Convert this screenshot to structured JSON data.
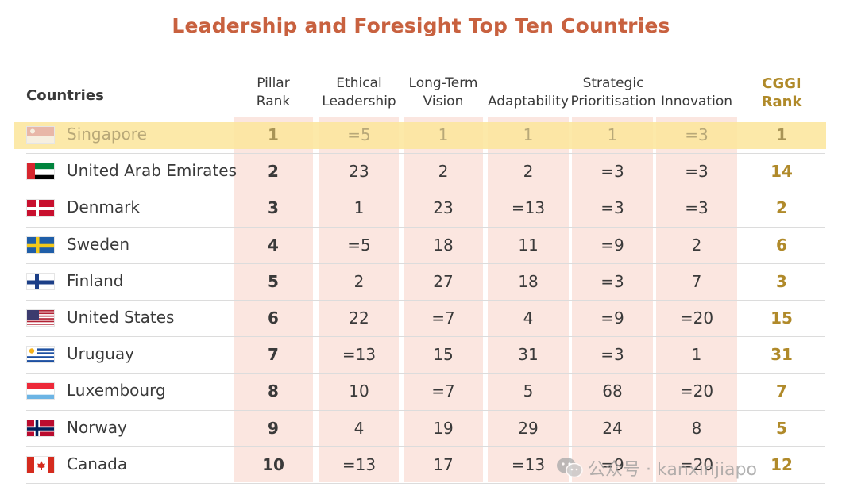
{
  "title": "Leadership and Foresight Top Ten Countries",
  "columns": {
    "countries": "Countries",
    "pillar": "Pillar\nRank",
    "ethical": "Ethical\nLeadership",
    "longterm": "Long-Term\nVision",
    "adaptability": "Adaptability",
    "strategic": "Strategic\nPrioritisation",
    "innovation": "Innovation",
    "cggi": "CGGI\nRank"
  },
  "rows": [
    {
      "country": "Singapore",
      "pillar": "1",
      "ethical": "=5",
      "longterm": "1",
      "adaptability": "1",
      "strategic": "1",
      "innovation": "=3",
      "cggi": "1"
    },
    {
      "country": "United Arab Emirates",
      "pillar": "2",
      "ethical": "23",
      "longterm": "2",
      "adaptability": "2",
      "strategic": "=3",
      "innovation": "=3",
      "cggi": "14"
    },
    {
      "country": "Denmark",
      "pillar": "3",
      "ethical": "1",
      "longterm": "23",
      "adaptability": "=13",
      "strategic": "=3",
      "innovation": "=3",
      "cggi": "2"
    },
    {
      "country": "Sweden",
      "pillar": "4",
      "ethical": "=5",
      "longterm": "18",
      "adaptability": "11",
      "strategic": "=9",
      "innovation": "2",
      "cggi": "6"
    },
    {
      "country": "Finland",
      "pillar": "5",
      "ethical": "2",
      "longterm": "27",
      "adaptability": "18",
      "strategic": "=3",
      "innovation": "7",
      "cggi": "3"
    },
    {
      "country": "United States",
      "pillar": "6",
      "ethical": "22",
      "longterm": "=7",
      "adaptability": "4",
      "strategic": "=9",
      "innovation": "=20",
      "cggi": "15"
    },
    {
      "country": "Uruguay",
      "pillar": "7",
      "ethical": "=13",
      "longterm": "15",
      "adaptability": "31",
      "strategic": "=3",
      "innovation": "1",
      "cggi": "31"
    },
    {
      "country": "Luxembourg",
      "pillar": "8",
      "ethical": "10",
      "longterm": "=7",
      "adaptability": "5",
      "strategic": "68",
      "innovation": "=20",
      "cggi": "7"
    },
    {
      "country": "Norway",
      "pillar": "9",
      "ethical": "4",
      "longterm": "19",
      "adaptability": "29",
      "strategic": "24",
      "innovation": "8",
      "cggi": "5"
    },
    {
      "country": "Canada",
      "pillar": "10",
      "ethical": "=13",
      "longterm": "17",
      "adaptability": "=13",
      "strategic": "=9",
      "innovation": "=20",
      "cggi": "12"
    }
  ],
  "flags": [
    "singapore-flag-icon",
    "uae-flag-icon",
    "denmark-flag-icon",
    "sweden-flag-icon",
    "finland-flag-icon",
    "usa-flag-icon",
    "uruguay-flag-icon",
    "luxembourg-flag-icon",
    "norway-flag-icon",
    "canada-flag-icon"
  ],
  "colors": {
    "title": "#c8613f",
    "cggi": "#b08a2a",
    "band": "#fbe6e0",
    "highlight": "#fbe59a"
  },
  "watermark": "公众号 · kanxinjiapo"
}
